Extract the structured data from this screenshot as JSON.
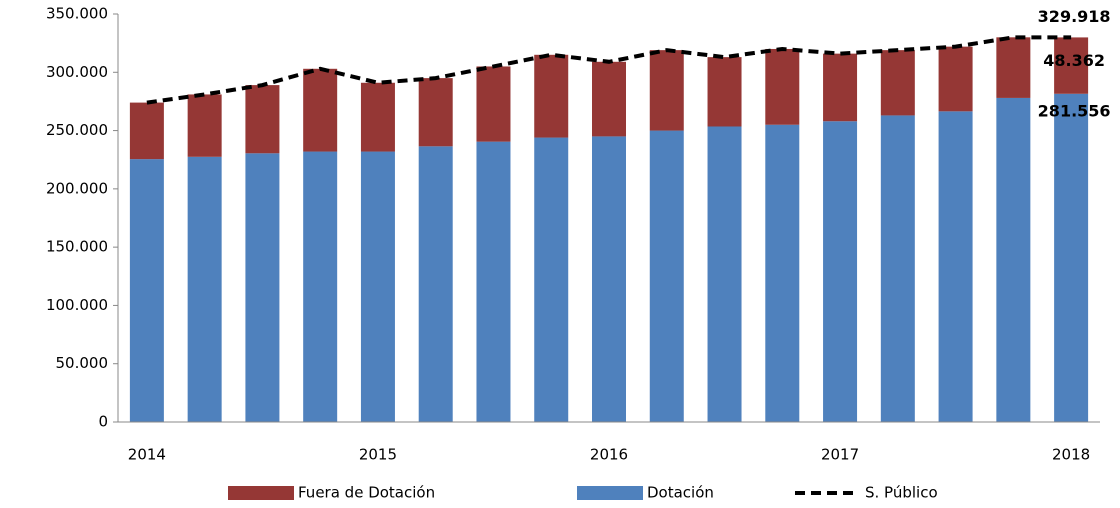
{
  "chart_data": {
    "type": "bar",
    "categories": [
      "2014",
      null,
      null,
      null,
      "2015",
      null,
      null,
      null,
      "2016",
      null,
      null,
      null,
      "2017",
      null,
      null,
      null,
      "2018"
    ],
    "series": [
      {
        "name": "Fuera de Dotación",
        "type": "bar",
        "color": "#953735",
        "values": [
          48500,
          53500,
          58500,
          71000,
          59000,
          58500,
          64500,
          71000,
          64000,
          69000,
          59500,
          65000,
          58000,
          56000,
          55500,
          52000,
          48362
        ],
        "value_labels": [
          null,
          null,
          null,
          null,
          null,
          null,
          null,
          null,
          null,
          null,
          null,
          null,
          null,
          null,
          null,
          null,
          "48.362"
        ]
      },
      {
        "name": "Dotación",
        "type": "bar",
        "color": "#4f81bd",
        "values": [
          225500,
          227500,
          230500,
          232000,
          232000,
          236500,
          240500,
          244000,
          245000,
          250000,
          253500,
          255000,
          258000,
          263000,
          266500,
          278000,
          281556
        ],
        "value_labels": [
          null,
          null,
          null,
          null,
          null,
          null,
          null,
          null,
          null,
          null,
          null,
          null,
          null,
          null,
          null,
          null,
          "281.556"
        ]
      },
      {
        "name": "S. Público",
        "type": "line",
        "color": "#000000",
        "dashed": true,
        "values": [
          274000,
          281000,
          289000,
          303000,
          291000,
          295000,
          305000,
          315000,
          309000,
          319000,
          313000,
          320000,
          316000,
          319000,
          322000,
          330000,
          329918
        ],
        "value_labels": [
          null,
          null,
          null,
          null,
          null,
          null,
          null,
          null,
          null,
          null,
          null,
          null,
          null,
          null,
          null,
          null,
          "329.918"
        ]
      }
    ],
    "ylim": [
      0,
      350000
    ],
    "yticks": [
      0,
      {
        "value": 50000,
        "label": "50.000"
      },
      {
        "value": 100000,
        "label": "100.000"
      },
      {
        "value": 150000,
        "label": "150.000"
      },
      {
        "value": 200000,
        "label": "200.000"
      },
      {
        "value": 250000,
        "label": "250.000"
      },
      {
        "value": 300000,
        "label": "300.000"
      },
      {
        "value": 350000,
        "label": "350.000"
      }
    ],
    "grid": false,
    "legend": "bottom"
  }
}
